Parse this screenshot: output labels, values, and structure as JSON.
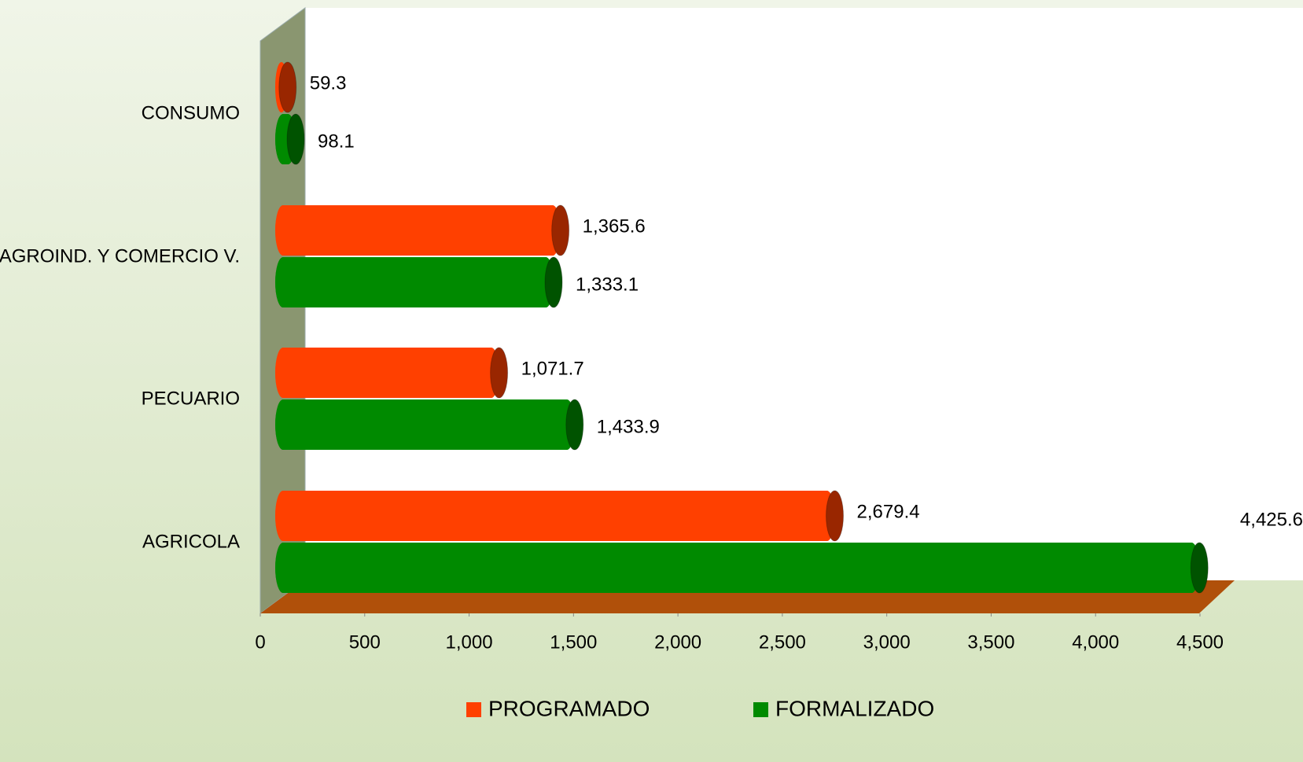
{
  "chart_data": {
    "type": "bar",
    "orientation": "horizontal",
    "categories": [
      "CONSUMO",
      "AGROIND. Y COMERCIO V.",
      "PECUARIO",
      "AGRICOLA"
    ],
    "series": [
      {
        "name": "PROGRAMADO",
        "color": "#ff4000",
        "values": [
          59.3,
          1365.6,
          1071.7,
          2679.4
        ],
        "value_labels": [
          "59.3",
          "1,365.6",
          "1,071.7",
          "2,679.4"
        ]
      },
      {
        "name": "FORMALIZADO",
        "color": "#008a00",
        "values": [
          98.1,
          1333.1,
          1433.9,
          4425.6
        ],
        "value_labels": [
          "98.1",
          "1,333.1",
          "1,433.9",
          "4,425.6"
        ]
      }
    ],
    "xlim": [
      0,
      4500
    ],
    "xticks": [
      0,
      {
        "value": 500,
        "label": "500"
      },
      {
        "value": 1000,
        "label": "1,000"
      },
      {
        "value": 1500,
        "label": "1,500"
      },
      {
        "value": 2000,
        "label": "2,000"
      },
      {
        "value": 2500,
        "label": "2,500"
      },
      {
        "value": 3000,
        "label": "3,000"
      },
      {
        "value": 3500,
        "label": "3,500"
      },
      {
        "value": 4000,
        "label": "4,000"
      },
      {
        "value": 4500,
        "label": "4,500"
      }
    ]
  }
}
